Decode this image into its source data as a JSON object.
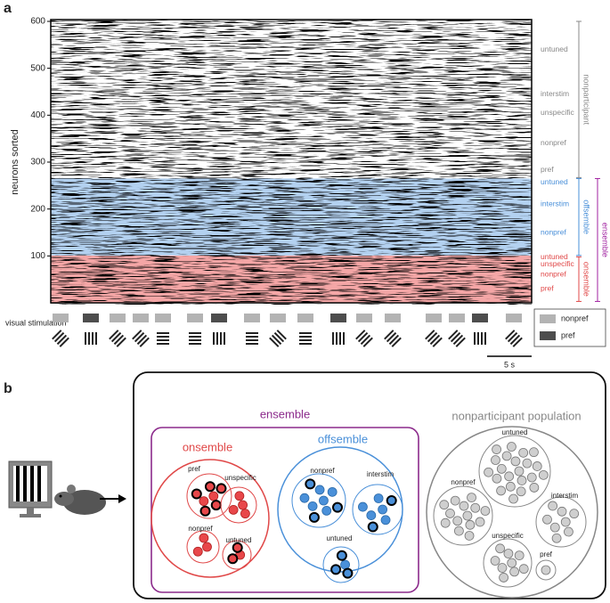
{
  "panel_a": {
    "label": "a",
    "y_axis_label": "neurons sorted",
    "ylim": [
      0,
      600
    ],
    "yticks": [
      100,
      200,
      300,
      400,
      500,
      600
    ],
    "xlim": [
      0,
      54
    ],
    "bands": [
      {
        "range": [
          0,
          101
        ],
        "color": "#f4a6a6"
      },
      {
        "range": [
          101,
          265
        ],
        "color": "#b3d1f0"
      }
    ],
    "subgroup_labels": [
      {
        "text": "untuned",
        "y": 540,
        "color": "#888888"
      },
      {
        "text": "interstim",
        "y": 445,
        "color": "#888888"
      },
      {
        "text": "unspecific",
        "y": 405,
        "color": "#888888"
      },
      {
        "text": "nonpref",
        "y": 340,
        "color": "#888888"
      },
      {
        "text": "pref",
        "y": 283,
        "color": "#888888"
      },
      {
        "text": "untuned",
        "y": 257,
        "color": "#4a90d9"
      },
      {
        "text": "interstim",
        "y": 210,
        "color": "#4a90d9"
      },
      {
        "text": "nonpref",
        "y": 150,
        "color": "#4a90d9"
      },
      {
        "text": "untuned",
        "y": 97,
        "color": "#e04848"
      },
      {
        "text": "unspecific",
        "y": 82,
        "color": "#e04848"
      },
      {
        "text": "nonpref",
        "y": 60,
        "color": "#e04848"
      },
      {
        "text": "pref",
        "y": 30,
        "color": "#e04848"
      }
    ],
    "brackets": [
      {
        "label": "nonparticipant",
        "range": [
          267,
          600
        ],
        "color": "#888888"
      },
      {
        "label": "offsemble",
        "range": [
          101,
          265
        ],
        "color": "#4a90d9"
      },
      {
        "label": "onsemble",
        "range": [
          3,
          98
        ],
        "color": "#e04848"
      },
      {
        "label": "ensemble",
        "range": [
          3,
          265
        ],
        "color": "#a020a0"
      }
    ],
    "stimulation_label": "visual stimulation",
    "legend": [
      {
        "label": "nonpref",
        "color": "#b3b3b3"
      },
      {
        "label": "pref",
        "color": "#4d4d4d"
      }
    ],
    "stimuli": [
      {
        "t": 1.1,
        "kind": 0,
        "orientation": 135
      },
      {
        "t": 4.5,
        "kind": 1,
        "orientation": 90
      },
      {
        "t": 7.5,
        "kind": 0,
        "orientation": 135
      },
      {
        "t": 10.1,
        "kind": 0,
        "orientation": 135
      },
      {
        "t": 12.6,
        "kind": 0,
        "orientation": 0
      },
      {
        "t": 16.2,
        "kind": 0,
        "orientation": 0
      },
      {
        "t": 18.9,
        "kind": 1,
        "orientation": 90
      },
      {
        "t": 22.6,
        "kind": 0,
        "orientation": 0
      },
      {
        "t": 25.5,
        "kind": 0,
        "orientation": 45
      },
      {
        "t": 28.6,
        "kind": 0,
        "orientation": 0
      },
      {
        "t": 32.3,
        "kind": 1,
        "orientation": 90
      },
      {
        "t": 35.2,
        "kind": 0,
        "orientation": 135
      },
      {
        "t": 38.4,
        "kind": 0,
        "orientation": 135
      },
      {
        "t": 43.0,
        "kind": 0,
        "orientation": 135
      },
      {
        "t": 45.6,
        "kind": 0,
        "orientation": 135
      },
      {
        "t": 48.2,
        "kind": 1,
        "orientation": 90
      },
      {
        "t": 52.0,
        "kind": 0,
        "orientation": 135
      }
    ],
    "scale_bar": {
      "length": 5,
      "label": "5 s"
    }
  },
  "panel_b": {
    "label": "b",
    "ensemble_label": "ensemble",
    "populations": [
      {
        "label": "onsemble",
        "color": "#e04848",
        "dot": "#e8474a",
        "dot_stroke": "#b02020",
        "groups": [
          {
            "label": "pref",
            "cells": 7,
            "highlighted": 5
          },
          {
            "label": "unspecific",
            "cells": 4,
            "highlighted": 0
          },
          {
            "label": "nonpref",
            "cells": 3,
            "highlighted": 0
          },
          {
            "label": "untuned",
            "cells": 3,
            "highlighted": 2
          }
        ]
      },
      {
        "label": "offsemble",
        "color": "#4a90d9",
        "dot": "#4a90d9",
        "dot_stroke": "#2a6aa9",
        "groups": [
          {
            "label": "nonpref",
            "cells": 9,
            "highlighted": 3
          },
          {
            "label": "interstim",
            "cells": 7,
            "highlighted": 2
          },
          {
            "label": "untuned",
            "cells": 4,
            "highlighted": 3
          }
        ]
      },
      {
        "label": "nonparticipant population",
        "color": "#888888",
        "dot": "#cfcfcf",
        "dot_stroke": "#777777",
        "groups": [
          {
            "label": "untuned",
            "cells": 22,
            "highlighted": 0
          },
          {
            "label": "nonpref",
            "cells": 14,
            "highlighted": 0
          },
          {
            "label": "interstim",
            "cells": 8,
            "highlighted": 0
          },
          {
            "label": "unspecific",
            "cells": 9,
            "highlighted": 0
          },
          {
            "label": "pref",
            "cells": 1,
            "highlighted": 0
          }
        ]
      }
    ]
  }
}
